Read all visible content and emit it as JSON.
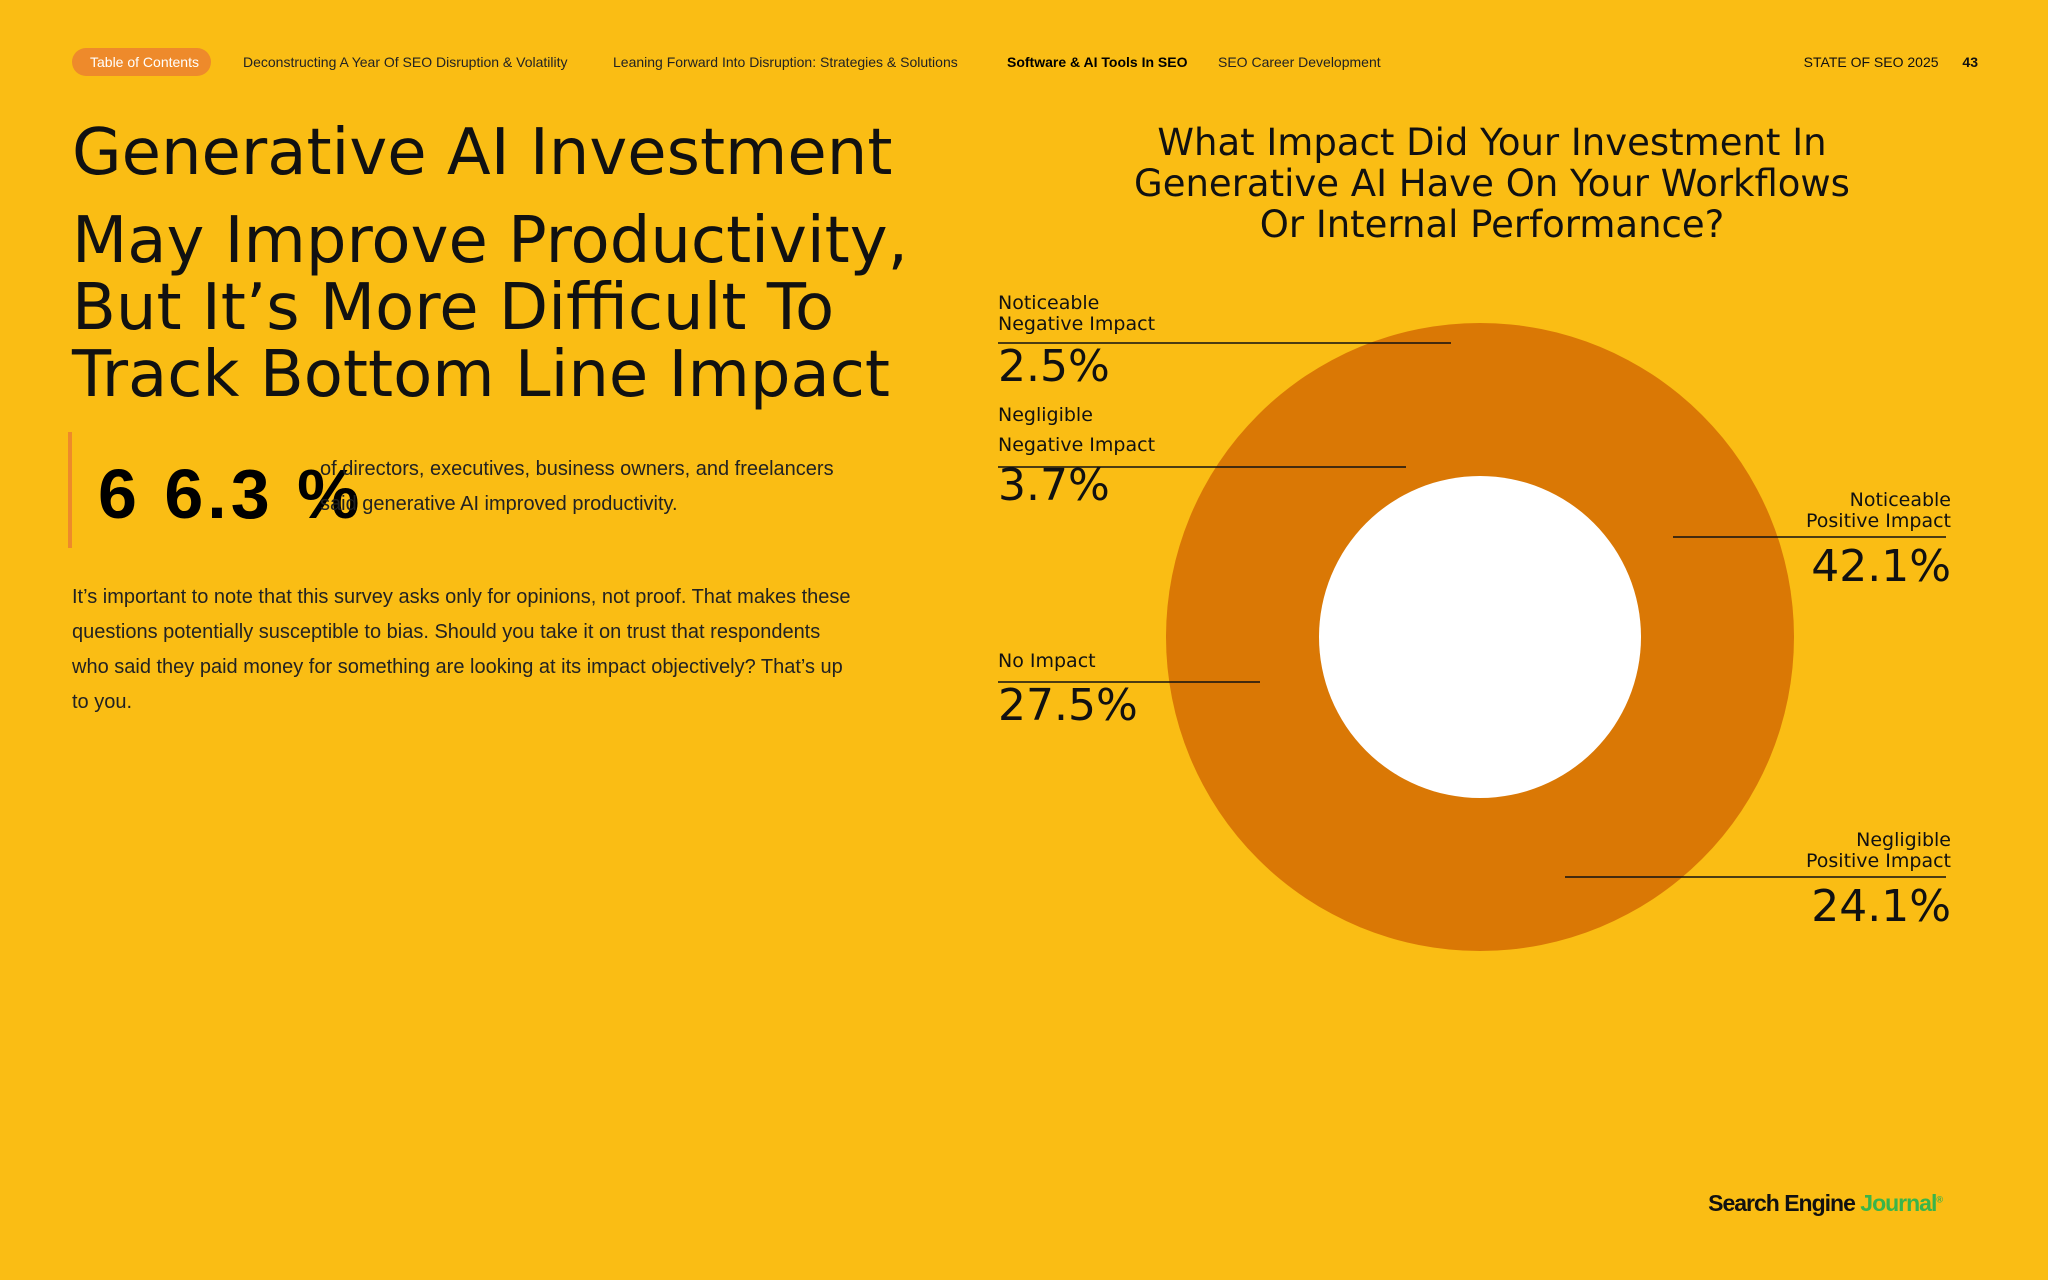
{
  "nav": {
    "toc_label": "Table of Contents",
    "links": [
      "Deconstructing A Year Of SEO Disruption & Volatility",
      "Leaning Forward Into Disruption: Strategies & Solutions",
      "Software & AI Tools In SEO",
      "SEO Career Development"
    ],
    "active_link": "Software & AI Tools In SEO",
    "report_title": "STATE OF SEO 2025",
    "page_number": "43"
  },
  "headline": {
    "line1": "Generative AI Investment",
    "line2": "May Improve Productivity,",
    "line3": "But It’s More Difficult To",
    "line4": "Track Bottom Line Impact"
  },
  "stat": {
    "value": "6 6.3 %",
    "description": "of directors, executives, business owners, and freelancers said generative AI improved productivity."
  },
  "body_text": "It’s important to note that this survey asks only for opinions, not proof. That makes these questions potentially susceptible to bias. Should you take it on trust that respondents who said they paid money for something are looking at its impact objectively? That’s up to you.",
  "chart_data": {
    "type": "pie",
    "variant": "donut",
    "title": "What Impact Did Your Investment In Generative AI Have On Your Workflows Or Internal Performance?",
    "slices": [
      {
        "label_line1": "Noticeable",
        "label_line2": "Positive Impact",
        "value": 42.1,
        "display": "42.1%"
      },
      {
        "label_line1": "Negligible",
        "label_line2": "Positive Impact",
        "value": 24.1,
        "display": "24.1%"
      },
      {
        "label_line1": "No Impact",
        "label_line2": "",
        "value": 27.5,
        "display": "27.5%"
      },
      {
        "label_line1": "Negligible",
        "label_line2": "Negative Impact",
        "value": 3.7,
        "display": "3.7%"
      },
      {
        "label_line1": "Noticeable",
        "label_line2": "Negative Impact",
        "value": 2.5,
        "display": "2.5%"
      }
    ],
    "colors": {
      "ring": "#DA7805",
      "hole": "#FFFFFF",
      "background": "#FABD14",
      "leader": "#111111"
    }
  },
  "brand": {
    "part1": "Search Engine ",
    "part2": "Journal",
    "mark": "®"
  }
}
